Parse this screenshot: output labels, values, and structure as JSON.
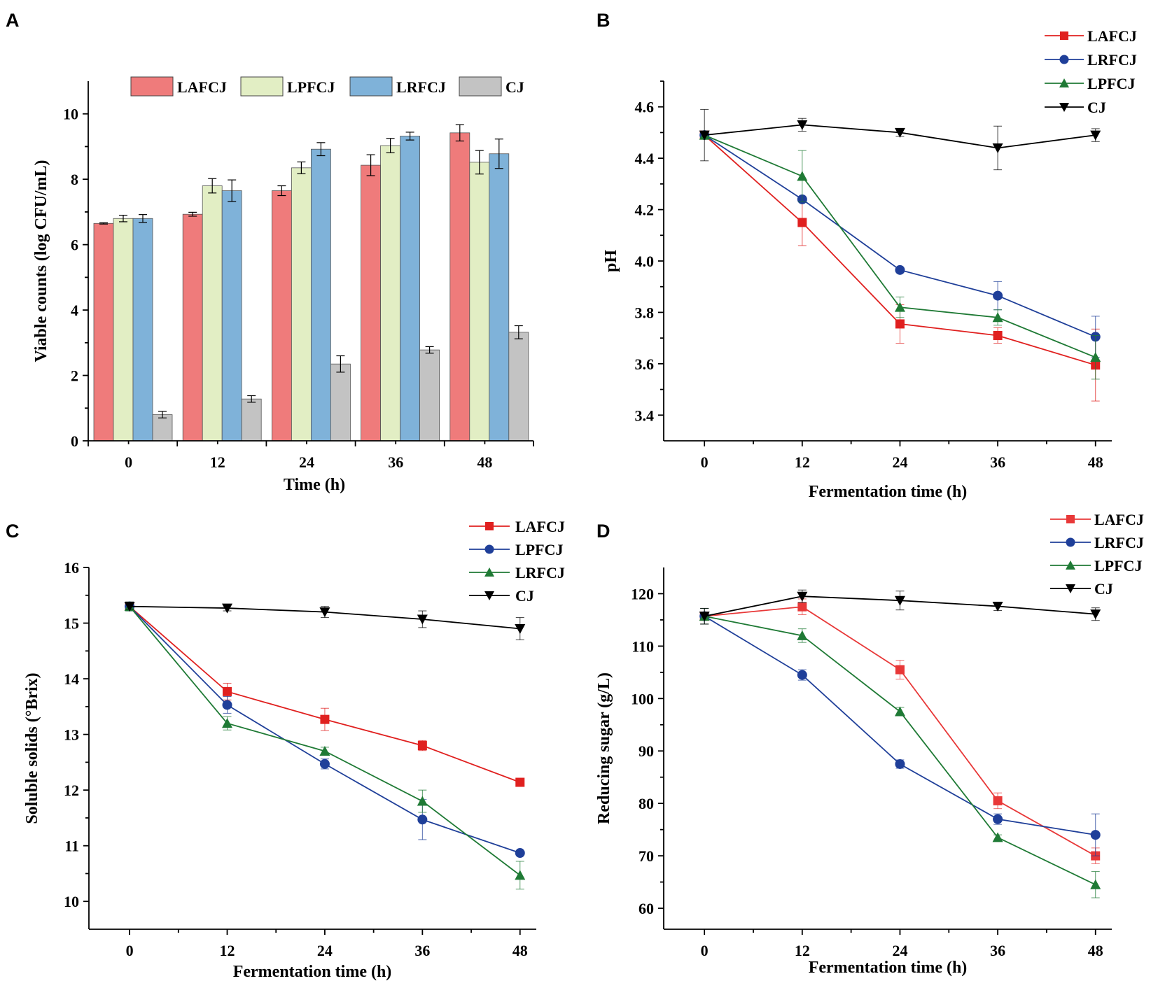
{
  "chart_data": [
    {
      "panel": "A",
      "type": "bar",
      "title": "",
      "xlabel": "Time (h)",
      "ylabel": "Viable counts (log CFU/mL)",
      "ylim": [
        0,
        11
      ],
      "yticks": [
        0,
        2,
        4,
        6,
        8,
        10
      ],
      "categories": [
        "0",
        "12",
        "24",
        "36",
        "48"
      ],
      "legend_position": "top",
      "series": [
        {
          "name": "LAFCJ",
          "color": "#ef7b7b",
          "values": [
            6.65,
            6.93,
            7.65,
            8.43,
            9.42
          ],
          "errors": [
            0.02,
            0.06,
            0.15,
            0.32,
            0.25
          ]
        },
        {
          "name": "LPFCJ",
          "color": "#e2eec4",
          "values": [
            6.8,
            7.8,
            8.35,
            9.03,
            8.52
          ],
          "errors": [
            0.1,
            0.22,
            0.18,
            0.22,
            0.36
          ]
        },
        {
          "name": "LRFCJ",
          "color": "#7fb2d9",
          "values": [
            6.8,
            7.65,
            8.92,
            9.32,
            8.78
          ],
          "errors": [
            0.12,
            0.33,
            0.2,
            0.12,
            0.45
          ]
        },
        {
          "name": "CJ",
          "color": "#c3c3c3",
          "values": [
            0.8,
            1.28,
            2.35,
            2.78,
            3.32
          ],
          "errors": [
            0.1,
            0.1,
            0.25,
            0.1,
            0.2
          ]
        }
      ]
    },
    {
      "panel": "B",
      "type": "line",
      "title": "",
      "xlabel": "Fermentation time (h)",
      "ylabel": "pH",
      "x": [
        0,
        12,
        24,
        36,
        48
      ],
      "xlim": [
        -5,
        50
      ],
      "ylim": [
        3.3,
        4.7
      ],
      "yticks": [
        3.4,
        3.6,
        3.8,
        4.0,
        4.2,
        4.4,
        4.6
      ],
      "yticks_labels": [
        "3.4",
        "3.6",
        "3.8",
        "4.0",
        "4.2",
        "4.4",
        "4.6"
      ],
      "legend_position": "top-right",
      "series": [
        {
          "name": "LAFCJ",
          "color": "#e0201f",
          "marker": "square",
          "values": [
            4.49,
            4.15,
            3.755,
            3.71,
            3.595
          ],
          "errors": [
            0,
            0.09,
            0.075,
            0.03,
            0.14
          ]
        },
        {
          "name": "LRFCJ",
          "color": "#1f3f99",
          "marker": "circle",
          "values": [
            4.49,
            4.24,
            3.965,
            3.865,
            3.705
          ],
          "errors": [
            0,
            0,
            0,
            0.055,
            0.08
          ]
        },
        {
          "name": "LPFCJ",
          "color": "#1f7a35",
          "marker": "triangle",
          "values": [
            4.49,
            4.33,
            3.82,
            3.78,
            3.625
          ],
          "errors": [
            0,
            0.1,
            0.04,
            0.03,
            0.085
          ]
        },
        {
          "name": "CJ",
          "color": "#000000",
          "marker": "triangle-down",
          "values": [
            4.49,
            4.53,
            4.5,
            4.44,
            4.49
          ],
          "errors": [
            0.1,
            0.025,
            0.015,
            0.085,
            0.025
          ]
        }
      ]
    },
    {
      "panel": "C",
      "type": "line",
      "title": "",
      "xlabel": "Fermentation time (h)",
      "ylabel": "Soluble solids (°Brix)",
      "x": [
        0,
        12,
        24,
        36,
        48
      ],
      "xlim": [
        -5,
        50
      ],
      "ylim": [
        9.5,
        16
      ],
      "yticks": [
        10,
        11,
        12,
        13,
        14,
        15,
        16
      ],
      "yticks_labels": [
        "10",
        "11",
        "12",
        "13",
        "14",
        "15",
        "16"
      ],
      "legend_position": "top-right",
      "series": [
        {
          "name": "LAFCJ",
          "color": "#e0201f",
          "marker": "square",
          "values": [
            15.3,
            13.77,
            13.27,
            12.8,
            12.14
          ],
          "errors": [
            0.08,
            0.15,
            0.2,
            0.09,
            0.03
          ]
        },
        {
          "name": "LPFCJ",
          "color": "#1f3f99",
          "marker": "circle",
          "values": [
            15.3,
            13.53,
            12.47,
            11.47,
            10.87
          ],
          "errors": [
            0.08,
            0.15,
            0.09,
            0.36,
            0.03
          ]
        },
        {
          "name": "LRFCJ",
          "color": "#1f7a35",
          "marker": "triangle",
          "values": [
            15.3,
            13.2,
            12.7,
            11.8,
            10.47
          ],
          "errors": [
            0.08,
            0.12,
            0.07,
            0.2,
            0.25
          ]
        },
        {
          "name": "CJ",
          "color": "#000000",
          "marker": "triangle-down",
          "values": [
            15.3,
            15.27,
            15.2,
            15.07,
            14.9
          ],
          "errors": [
            0.05,
            0.05,
            0.1,
            0.15,
            0.2
          ]
        }
      ]
    },
    {
      "panel": "D",
      "type": "line",
      "title": "",
      "xlabel": "Fermentation time (h)",
      "ylabel": "Reducing sugar (g/L)",
      "x": [
        0,
        12,
        24,
        36,
        48
      ],
      "xlim": [
        -5,
        50
      ],
      "ylim": [
        56,
        125
      ],
      "yticks": [
        60,
        70,
        80,
        90,
        100,
        110,
        120
      ],
      "yticks_labels": [
        "60",
        "70",
        "80",
        "90",
        "100",
        "110",
        "120"
      ],
      "legend_position": "top-right",
      "series": [
        {
          "name": "LAFCJ",
          "color": "#e83838",
          "marker": "square",
          "values": [
            115.7,
            117.5,
            105.5,
            80.5,
            70.0
          ],
          "errors": [
            1.5,
            1.5,
            1.8,
            1.5,
            1.5
          ]
        },
        {
          "name": "LRFCJ",
          "color": "#1f3f99",
          "marker": "circle",
          "values": [
            115.7,
            104.5,
            87.5,
            77.0,
            74.0
          ],
          "errors": [
            1.5,
            1.0,
            0.8,
            1.0,
            4.0
          ]
        },
        {
          "name": "LPFCJ",
          "color": "#1f7a35",
          "marker": "triangle",
          "values": [
            115.7,
            112.0,
            97.5,
            73.5,
            64.5
          ],
          "errors": [
            1.5,
            1.3,
            0.8,
            0.5,
            2.5
          ]
        },
        {
          "name": "CJ",
          "color": "#000000",
          "marker": "triangle-down",
          "values": [
            115.7,
            119.5,
            118.7,
            117.6,
            116.1
          ],
          "errors": [
            1.5,
            1.2,
            1.8,
            0.8,
            1.2
          ]
        }
      ]
    }
  ]
}
